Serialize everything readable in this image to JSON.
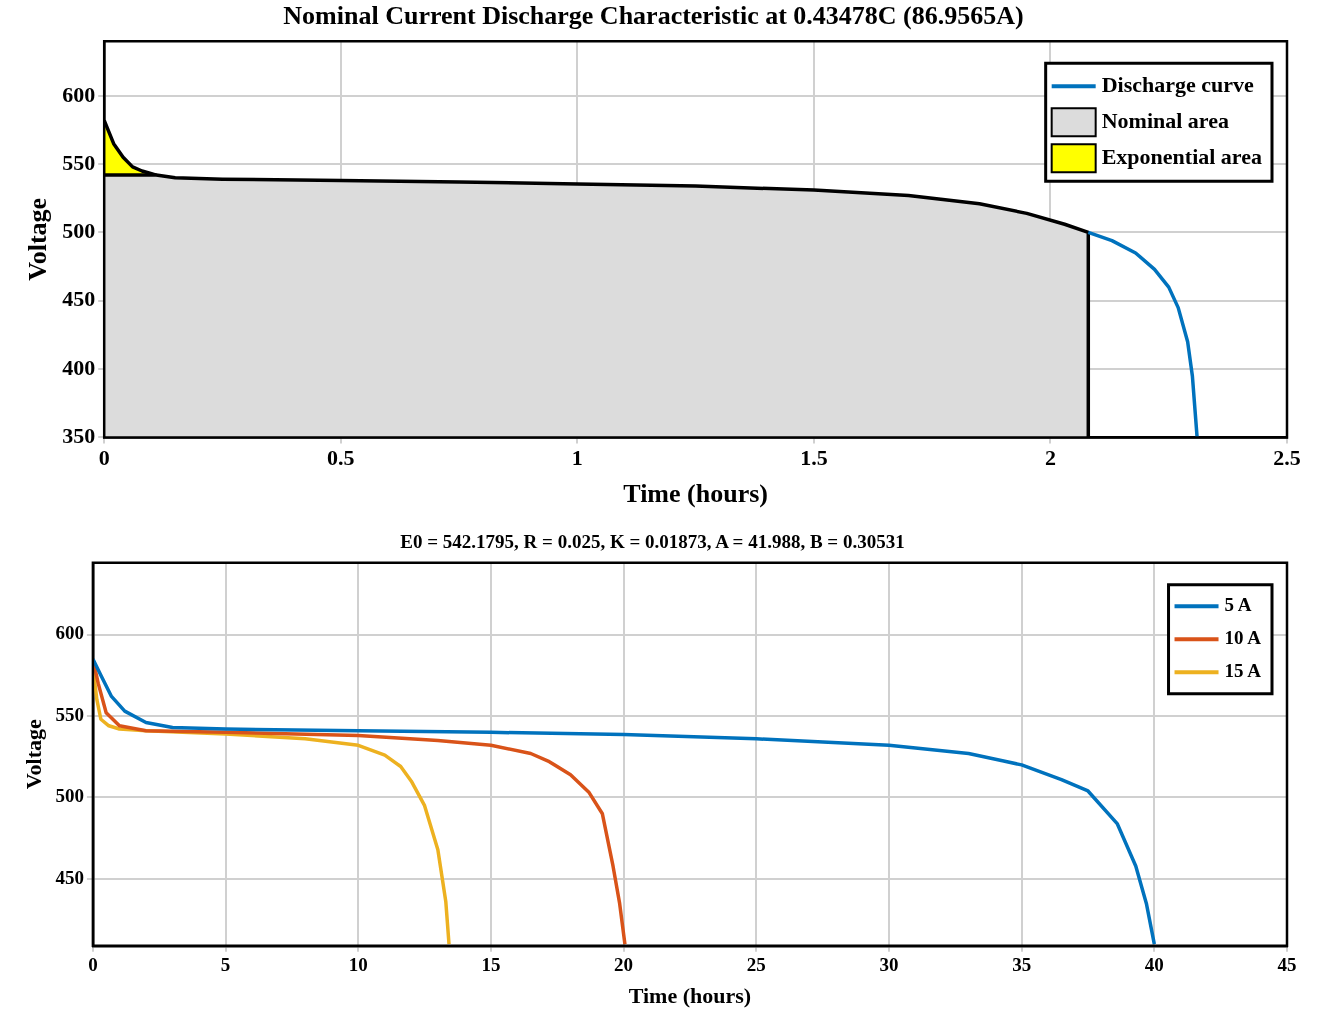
{
  "chart_data": [
    {
      "type": "line",
      "title": "Nominal Current Discharge Characteristic at 0.43478C (86.9565A)",
      "xlabel": "Time (hours)",
      "ylabel": "Voltage",
      "xlim": [
        0,
        2.5
      ],
      "xticks": [
        0,
        0.5,
        1,
        1.5,
        2,
        2.5
      ],
      "ylim": [
        350,
        640
      ],
      "yticks": [
        350,
        400,
        450,
        500,
        550,
        600
      ],
      "grid": true,
      "legend": "top right",
      "series": [
        {
          "name": "Discharge curve",
          "type": "line",
          "color": "#0072bd",
          "x": [
            2.08,
            2.13,
            2.18,
            2.22,
            2.25,
            2.27,
            2.29,
            2.3,
            2.31
          ],
          "values": [
            500,
            494,
            485,
            473,
            460,
            445,
            420,
            395,
            350
          ]
        },
        {
          "name": "Nominal area",
          "type": "area",
          "color": "#dcdcdc",
          "x": [
            0,
            0.11,
            0.15,
            0.25,
            0.5,
            0.75,
            1,
            1.25,
            1.5,
            1.7,
            1.85,
            1.95,
            2.03,
            2.08,
            2.08
          ],
          "values": [
            542,
            542,
            540,
            539,
            538,
            537,
            535.5,
            534,
            531,
            527,
            521,
            514,
            506,
            500,
            350
          ]
        },
        {
          "name": "Exponential area",
          "type": "area",
          "color": "#ffff00",
          "x": [
            0,
            0.02,
            0.04,
            0.06,
            0.08,
            0.1,
            0.11
          ],
          "values": [
            582,
            565,
            555,
            548,
            545,
            543,
            542
          ]
        }
      ]
    },
    {
      "type": "line",
      "title": "E0 = 542.1795, R = 0.025, K = 0.01873, A = 41.988, B = 0.30531",
      "xlabel": "Time (hours)",
      "ylabel": "Voltage",
      "xlim": [
        0,
        45
      ],
      "xticks": [
        0,
        5,
        10,
        15,
        20,
        25,
        30,
        35,
        40,
        45
      ],
      "ylim": [
        409,
        644
      ],
      "yticks": [
        450,
        500,
        550,
        600
      ],
      "grid": true,
      "legend": "top right",
      "series": [
        {
          "name": "5 A",
          "color": "#0072bd",
          "x": [
            0,
            0.3,
            0.7,
            1.2,
            2,
            3,
            5,
            10,
            15,
            20,
            25,
            30,
            33,
            35,
            36.5,
            37.5,
            38.6,
            39.3,
            39.7,
            40
          ],
          "values": [
            585,
            575,
            562,
            553,
            546,
            543,
            542,
            541,
            540,
            538.6,
            536,
            532,
            527,
            520,
            511,
            504,
            484,
            458,
            435,
            410
          ]
        },
        {
          "name": "10 A",
          "color": "#d95319",
          "x": [
            0,
            0.2,
            0.5,
            1,
            2,
            5,
            10,
            13,
            15,
            16.5,
            17.2,
            18,
            18.7,
            19.2,
            19.6,
            19.85,
            20.05
          ],
          "values": [
            585,
            570,
            552,
            544,
            541,
            540,
            538,
            535,
            532,
            527,
            522,
            514,
            503,
            490,
            458,
            435,
            410
          ]
        },
        {
          "name": "15 A",
          "color": "#edb120",
          "x": [
            0,
            0.15,
            0.3,
            0.6,
            1,
            2,
            5,
            8,
            10,
            11,
            11.6,
            12,
            12.5,
            13,
            13.3,
            13.42
          ],
          "values": [
            580,
            560,
            548,
            544,
            542,
            541,
            539,
            536,
            532,
            526,
            519,
            510,
            495,
            468,
            436,
            410
          ]
        }
      ]
    }
  ]
}
